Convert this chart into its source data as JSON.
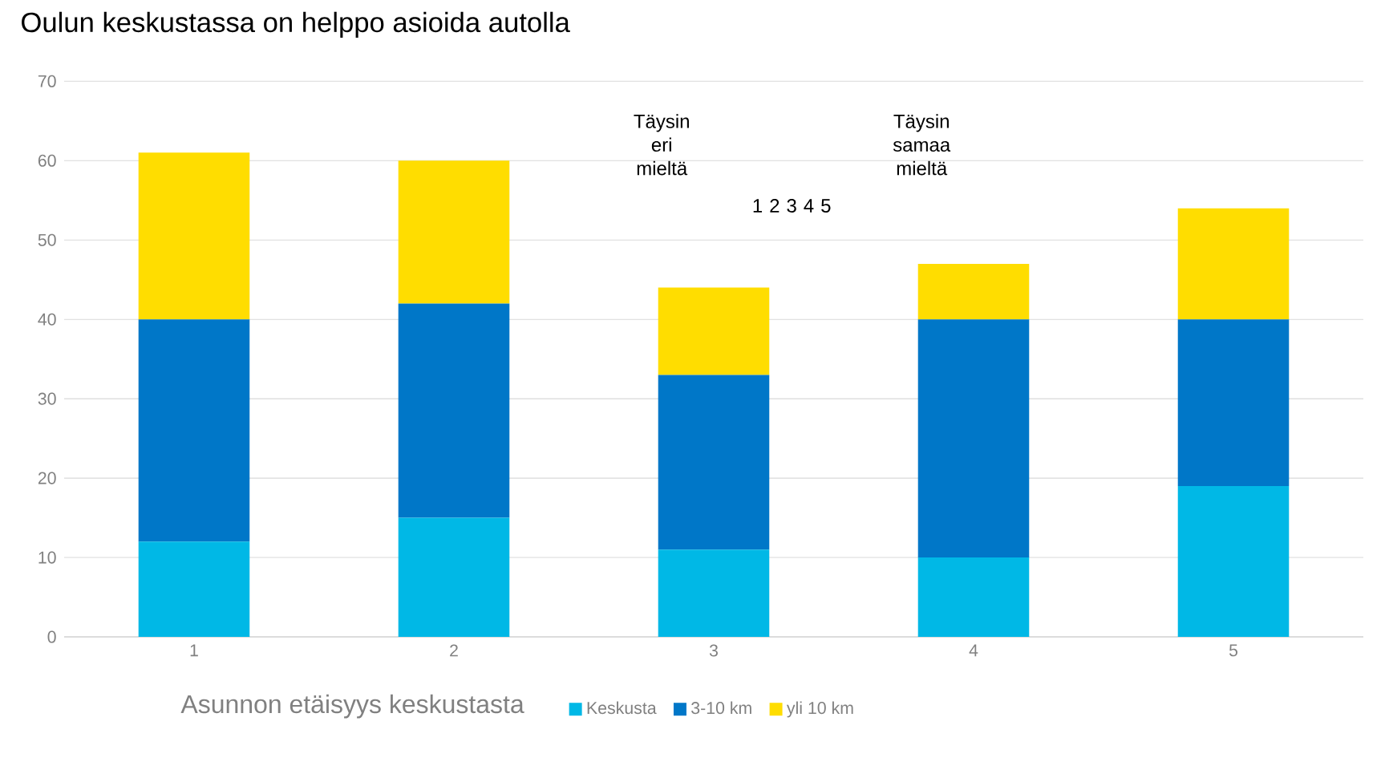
{
  "chart_data": {
    "type": "bar",
    "stacked": true,
    "title": "Oulun keskustassa on helppo asioida autolla",
    "categories": [
      "1",
      "2",
      "3",
      "4",
      "5"
    ],
    "series": [
      {
        "name": "Keskusta",
        "color": "#00b8e6",
        "values": [
          12,
          15,
          11,
          10,
          19
        ]
      },
      {
        "name": "3-10 km",
        "color": "#0077c8",
        "values": [
          28,
          27,
          22,
          30,
          21
        ]
      },
      {
        "name": "yli 10 km",
        "color": "#ffdd00",
        "values": [
          21,
          18,
          11,
          7,
          14
        ]
      }
    ],
    "legend_title": "Asunnon etäisyys keskustasta",
    "annotations": [
      "Täysin eri mieltä",
      "1 2 3 4 5",
      "Täysin samaa mieltä"
    ],
    "ylim": [
      0,
      70
    ],
    "yticks": [
      0,
      10,
      20,
      30,
      40,
      50,
      60,
      70
    ],
    "grid": "y",
    "legend": "bottom"
  }
}
